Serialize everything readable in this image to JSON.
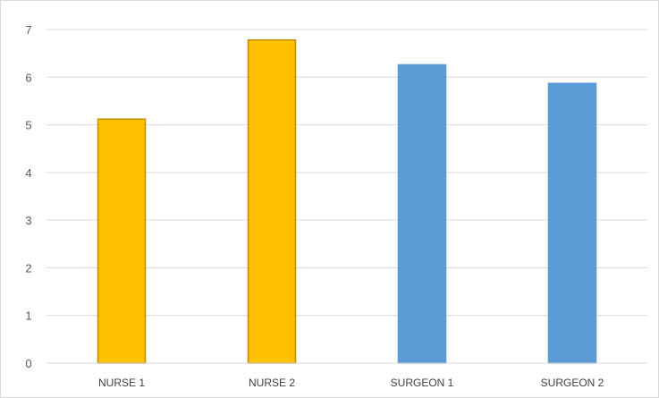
{
  "chart_data": {
    "type": "bar",
    "categories": [
      "NURSE 1",
      "NURSE 2",
      "SURGEON 1",
      "SURGEON 2"
    ],
    "values": [
      5.12,
      6.78,
      6.26,
      5.87
    ],
    "bar_colors": [
      "#ffc000",
      "#ffc000",
      "#5b9bd5",
      "#5b9bd5"
    ],
    "bar_borders": [
      "#bf9000",
      "#bf9000",
      "#5b9bd5",
      "#5b9bd5"
    ],
    "title": "",
    "xlabel": "",
    "ylabel": "",
    "ylim": [
      0,
      7
    ],
    "yticks": [
      "0",
      "1",
      "2",
      "3",
      "4",
      "5",
      "6",
      "7"
    ],
    "grid": true,
    "legend": "none"
  }
}
